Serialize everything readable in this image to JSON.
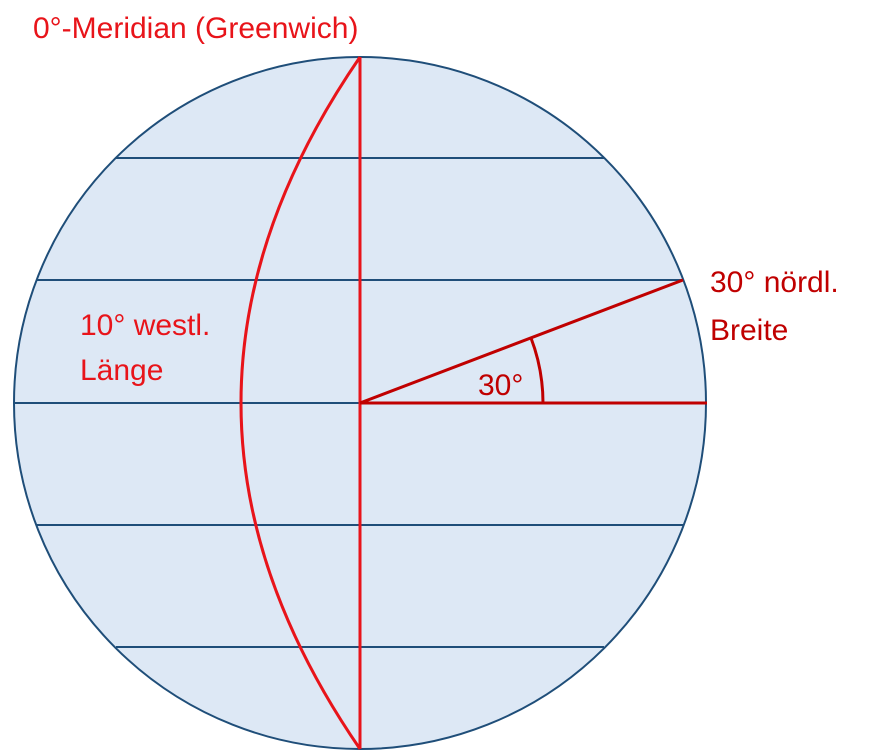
{
  "title": "0°-Meridian (Greenwich)",
  "latitude_label": [
    "30° nördl.",
    "Breite"
  ],
  "longitude_label": [
    "10° westl.",
    "Länge"
  ],
  "angle_label": "30°"
}
